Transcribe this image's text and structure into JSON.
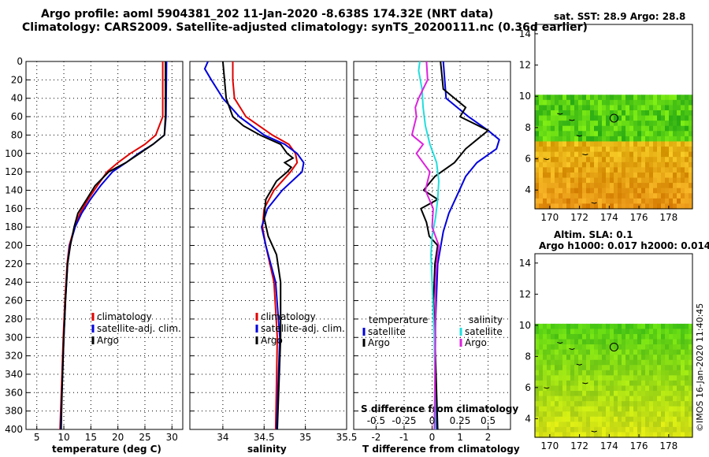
{
  "titles": {
    "line1": "Argo profile: aoml 5904381_202 11-Jan-2020 -8.638S 174.32E (NRT data)",
    "line2": "Climatology: CARS2009. Satellite-adjusted climatology: synTS_20200111.nc (0.36d earlier)"
  },
  "right_panel": {
    "top_title": "sat. SST: 28.9 Argo: 28.8",
    "bottom_title_1": "Altim. SLA: 0.1",
    "bottom_title_2": "Argo h1000: 0.017 h2000: 0.014",
    "timestamp": "©IMOS 16-Jan-2020 11:40:45"
  },
  "colors": {
    "climatology": "#e00000",
    "satellite": "#0000dd",
    "argo": "#000000",
    "sat_salinity": "#22dddd",
    "argo_salinity": "#dd22dd"
  },
  "chart_data": [
    {
      "type": "line",
      "name": "temperature",
      "xlabel": "temperature (deg C)",
      "ylabel": "",
      "xlim": [
        3,
        32
      ],
      "ylim": [
        400,
        0
      ],
      "xticks": [
        5,
        10,
        15,
        20,
        25,
        30
      ],
      "yticks": [
        0,
        20,
        40,
        60,
        80,
        100,
        120,
        140,
        160,
        180,
        200,
        220,
        240,
        260,
        280,
        300,
        320,
        340,
        360,
        380,
        400
      ],
      "grid": true,
      "legend": [
        "climatology",
        "satellite-adj. clim.",
        "Argo"
      ],
      "series": [
        {
          "name": "climatology",
          "color_key": "climatology",
          "depth": [
            0,
            60,
            80,
            90,
            100,
            110,
            120,
            135,
            150,
            165,
            180,
            200,
            220,
            260,
            300,
            350,
            400
          ],
          "values": [
            28.3,
            28.3,
            27,
            25,
            22.3,
            20,
            18,
            16.2,
            14.5,
            13,
            12,
            11,
            10.6,
            10.2,
            9.9,
            9.6,
            9.3
          ]
        },
        {
          "name": "satellite-adj. clim.",
          "color_key": "satellite",
          "depth": [
            0,
            60,
            80,
            90,
            100,
            110,
            120,
            135,
            150,
            165,
            180,
            200,
            220,
            260,
            300,
            350,
            400
          ],
          "values": [
            29,
            28.9,
            28.6,
            26.5,
            23.8,
            21.5,
            19,
            16.8,
            14.9,
            13.3,
            12.1,
            11.1,
            10.7,
            10.3,
            10,
            9.7,
            9.4
          ]
        },
        {
          "name": "Argo",
          "color_key": "argo",
          "depth": [
            0,
            60,
            80,
            90,
            100,
            110,
            120,
            135,
            150,
            165,
            180,
            200,
            220,
            260,
            300,
            350,
            400
          ],
          "values": [
            28.8,
            28.8,
            28.6,
            26.5,
            24,
            21.5,
            18.3,
            15.8,
            14.2,
            12.6,
            11.9,
            11.2,
            10.7,
            10.3,
            10,
            9.7,
            9.5
          ]
        }
      ]
    },
    {
      "type": "line",
      "name": "salinity",
      "xlabel": "salinity",
      "xlim": [
        33.6,
        35.5
      ],
      "ylim": [
        400,
        0
      ],
      "xticks": [
        34,
        34.5,
        35,
        35.5
      ],
      "grid": true,
      "legend": [
        "climatology",
        "satellite-adj. clim.",
        "Argo"
      ],
      "series": [
        {
          "name": "climatology",
          "color_key": "climatology",
          "depth": [
            0,
            20,
            40,
            60,
            80,
            90,
            100,
            110,
            120,
            140,
            160,
            180,
            200,
            240,
            300,
            350,
            400
          ],
          "values": [
            34.12,
            34.12,
            34.14,
            34.28,
            34.6,
            34.8,
            34.88,
            34.9,
            34.82,
            34.62,
            34.5,
            34.48,
            34.52,
            34.62,
            34.66,
            34.65,
            34.64
          ]
        },
        {
          "name": "satellite-adj. clim.",
          "color_key": "satellite",
          "depth": [
            0,
            8,
            20,
            40,
            60,
            80,
            90,
            100,
            110,
            120,
            140,
            160,
            180,
            200,
            240,
            300,
            350,
            400
          ],
          "values": [
            33.82,
            33.78,
            33.86,
            34.0,
            34.2,
            34.5,
            34.75,
            34.9,
            34.98,
            34.96,
            34.72,
            34.54,
            34.47,
            34.52,
            34.64,
            34.69,
            34.67,
            34.65
          ]
        },
        {
          "name": "Argo",
          "color_key": "argo",
          "depth": [
            0,
            20,
            40,
            60,
            70,
            80,
            90,
            100,
            105,
            110,
            115,
            120,
            130,
            150,
            170,
            190,
            210,
            240,
            300,
            350,
            400
          ],
          "values": [
            34.0,
            34.02,
            34.04,
            34.12,
            34.25,
            34.45,
            34.7,
            34.78,
            34.85,
            34.75,
            34.83,
            34.78,
            34.65,
            34.52,
            34.5,
            34.55,
            34.65,
            34.7,
            34.7,
            34.68,
            34.66
          ]
        }
      ]
    },
    {
      "type": "line",
      "name": "difference from climatology",
      "xlabel": "T difference from climatology",
      "xlabel_top": "S difference from climatology",
      "xlim": [
        -2.8,
        2.8
      ],
      "ylim": [
        400,
        0
      ],
      "xticks": [
        -2,
        -1,
        0,
        1,
        2
      ],
      "top_xticks": [
        "-0.5",
        "-0.25",
        "0",
        "0.25",
        "0.5"
      ],
      "top_xtick_values": [
        -0.5,
        -0.25,
        0,
        0.25,
        0.5
      ],
      "grid": true,
      "legend_temperature_title": "temperature",
      "legend_salinity_title": "salinity",
      "legend": [
        "satellite",
        "Argo",
        "satellite",
        "Argo"
      ],
      "series": [
        {
          "name": "T satellite",
          "color_key": "satellite",
          "depth": [
            0,
            40,
            60,
            75,
            85,
            95,
            110,
            125,
            145,
            165,
            185,
            220,
            260,
            300,
            350,
            400
          ],
          "values": [
            0.4,
            0.5,
            1.3,
            2.0,
            2.4,
            2.3,
            1.6,
            1.2,
            0.9,
            0.6,
            0.4,
            0.2,
            0.15,
            0.1,
            0.1,
            0.15
          ]
        },
        {
          "name": "T Argo",
          "color_key": "argo",
          "depth": [
            0,
            30,
            50,
            60,
            75,
            85,
            95,
            110,
            125,
            140,
            150,
            160,
            175,
            190,
            200,
            220,
            260,
            300,
            350,
            400
          ],
          "values": [
            0.3,
            0.4,
            1.2,
            1.0,
            2.0,
            1.6,
            1.2,
            0.8,
            0.1,
            -0.3,
            0.2,
            -0.4,
            -0.2,
            -0.1,
            0.2,
            0.1,
            0.05,
            0.1,
            0.15,
            0.2
          ]
        },
        {
          "name": "S satellite",
          "color_key": "sat_salinity",
          "depth": [
            0,
            10,
            30,
            50,
            70,
            90,
            110,
            130,
            150,
            170,
            190,
            210,
            240,
            300,
            400
          ],
          "values": [
            -0.11,
            -0.12,
            -0.09,
            -0.08,
            -0.06,
            -0.02,
            0.04,
            0.06,
            0.05,
            0.03,
            0.0,
            -0.01,
            0.0,
            0.02,
            0.03
          ]
        },
        {
          "name": "S Argo",
          "color_key": "argo_salinity",
          "depth": [
            0,
            20,
            40,
            50,
            60,
            80,
            90,
            100,
            120,
            140,
            160,
            180,
            200,
            220,
            240,
            300,
            400
          ],
          "values": [
            -0.05,
            -0.04,
            -0.12,
            -0.15,
            -0.14,
            -0.18,
            -0.08,
            -0.14,
            -0.02,
            -0.06,
            0.01,
            0.0,
            0.06,
            0.04,
            0.03,
            0.03,
            0.02
          ]
        }
      ]
    },
    {
      "type": "heatmap",
      "name": "satellite SST map",
      "xticks": [
        170,
        172,
        174,
        176,
        178
      ],
      "yticks": [
        4,
        6,
        8,
        10,
        12,
        14
      ],
      "xlim": [
        169,
        179.6
      ],
      "ylim": [
        2.8,
        14.6
      ],
      "data_ylim": [
        2.8,
        10.1
      ],
      "argo_position": {
        "lon": 174.32,
        "lat": 8.6
      }
    },
    {
      "type": "heatmap",
      "name": "altimetry SLA map",
      "xticks": [
        170,
        172,
        174,
        176,
        178
      ],
      "yticks": [
        4,
        6,
        8,
        10,
        12,
        14
      ],
      "xlim": [
        169,
        179.6
      ],
      "ylim": [
        2.8,
        14.6
      ],
      "data_ylim": [
        2.8,
        10.1
      ],
      "argo_position": {
        "lon": 174.32,
        "lat": 8.6
      }
    }
  ]
}
